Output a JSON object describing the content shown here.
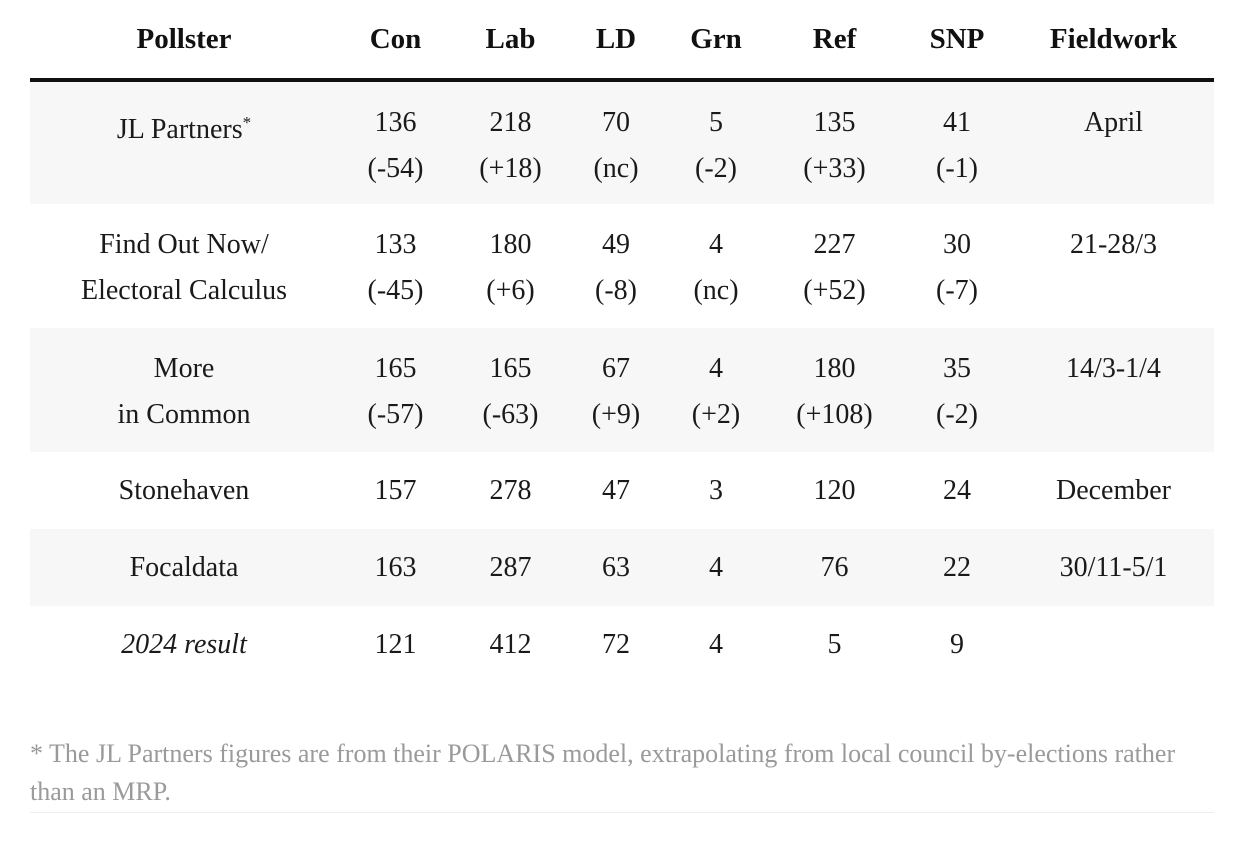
{
  "table": {
    "headers": [
      "Pollster",
      "Con",
      "Lab",
      "LD",
      "Grn",
      "Ref",
      "SNP",
      "Fieldwork"
    ],
    "rows": [
      {
        "pollster": [
          "JL Partners"
        ],
        "star": "*",
        "cells": [
          [
            "136",
            "(-54)"
          ],
          [
            "218",
            "(+18)"
          ],
          [
            "70",
            "(nc)"
          ],
          [
            "5",
            "(-2)"
          ],
          [
            "135",
            "(+33)"
          ],
          [
            "41",
            "(-1)"
          ]
        ],
        "fieldwork": "April"
      },
      {
        "pollster": [
          "Find Out Now/",
          "Electoral Calculus"
        ],
        "cells": [
          [
            "133",
            "(-45)"
          ],
          [
            "180",
            "(+6)"
          ],
          [
            "49",
            "(-8)"
          ],
          [
            "4",
            "(nc)"
          ],
          [
            "227",
            "(+52)"
          ],
          [
            "30",
            "(-7)"
          ]
        ],
        "fieldwork": "21-28/3"
      },
      {
        "pollster": [
          "More",
          "in Common"
        ],
        "cells": [
          [
            "165",
            "(-57)"
          ],
          [
            "165",
            "(-63)"
          ],
          [
            "67",
            "(+9)"
          ],
          [
            "4",
            "(+2)"
          ],
          [
            "180",
            "(+108)"
          ],
          [
            "35",
            "(-2)"
          ]
        ],
        "fieldwork": "14/3-1/4"
      },
      {
        "pollster": "Stonehaven",
        "cells": [
          "157",
          "278",
          "47",
          "3",
          "120",
          "24"
        ],
        "fieldwork": "December"
      },
      {
        "pollster": "Focaldata",
        "cells": [
          "163",
          "287",
          "63",
          "4",
          "76",
          "22"
        ],
        "fieldwork": "30/11-5/1"
      },
      {
        "pollster": "2024 result",
        "cells": [
          "121",
          "412",
          "72",
          "4",
          "5",
          "9"
        ],
        "fieldwork": ""
      }
    ]
  },
  "footnote": "* The JL Partners figures are from their POLARIS model, extrapolating from local council by-elections rather than an MRP."
}
